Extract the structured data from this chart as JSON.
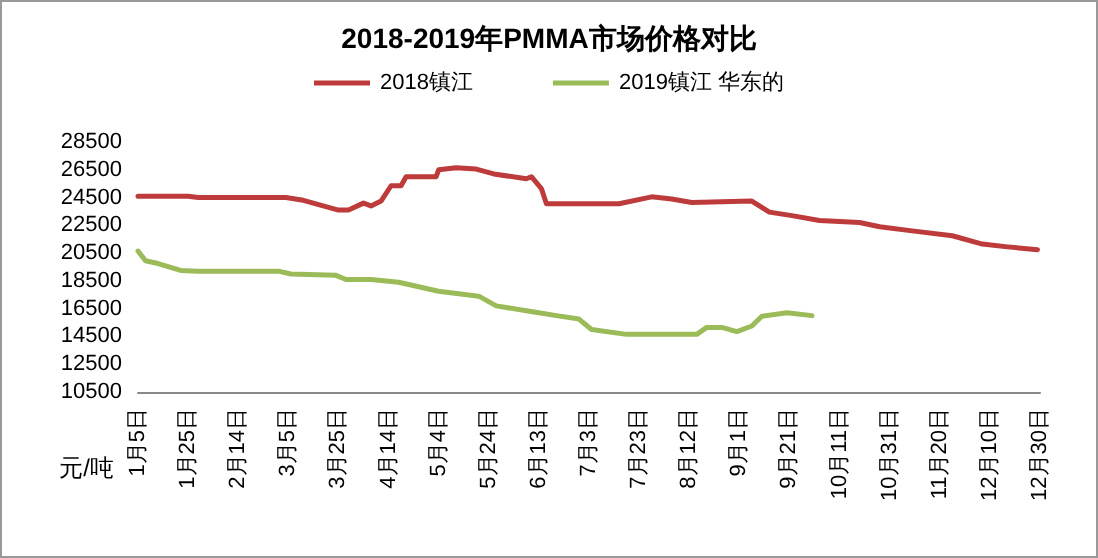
{
  "chart_data": {
    "type": "line",
    "title": "2018-2019年PMMA市场价格对比",
    "ylabel": "元/吨",
    "series": [
      {
        "name": "2018镇江",
        "color": "#be3b3b",
        "x": [
          "--01-05",
          "--01-25",
          "--01-29",
          "--03-04",
          "--03-11",
          "--03-25",
          "--03-29",
          "--04-04",
          "--04-07",
          "--04-11",
          "--04-15",
          "--04-19",
          "--04-21",
          "--05-03",
          "--05-04",
          "--05-11",
          "--05-19",
          "--05-26",
          "--06-08",
          "--06-10",
          "--06-14",
          "--06-16",
          "--07-15",
          "--07-28",
          "--08-05",
          "--08-13",
          "--09-06",
          "--09-13",
          "--09-22",
          "--10-03",
          "--10-19",
          "--10-27",
          "--11-09",
          "--11-25",
          "--12-07",
          "--12-17",
          "--12-29"
        ],
        "values": [
          24600,
          24600,
          24500,
          24500,
          24300,
          23600,
          23600,
          24100,
          23900,
          24250,
          25350,
          25350,
          26000,
          26000,
          26500,
          26650,
          26550,
          26200,
          25850,
          26000,
          25150,
          24050,
          24050,
          24550,
          24400,
          24150,
          24250,
          23450,
          23200,
          22850,
          22700,
          22400,
          22100,
          21750,
          21150,
          20950,
          20750
        ]
      },
      {
        "name": "2019镇江 华东的",
        "color": "#9bbb59",
        "x": [
          "--01-05",
          "--01-08",
          "--01-13",
          "--01-22",
          "--01-29",
          "--03-01",
          "--03-06",
          "--03-24",
          "--03-28",
          "--04-07",
          "--04-18",
          "--05-04",
          "--05-20",
          "--05-27",
          "--06-08",
          "--06-13",
          "--06-20",
          "--06-29",
          "--07-04",
          "--07-18",
          "--08-15",
          "--08-19",
          "--08-25",
          "--08-31",
          "--09-06",
          "--09-10",
          "--09-20",
          "--09-30"
        ],
        "values": [
          20650,
          19950,
          19750,
          19250,
          19200,
          19200,
          19000,
          18900,
          18600,
          18600,
          18400,
          17750,
          17400,
          16700,
          16350,
          16200,
          16000,
          15750,
          15000,
          14650,
          14650,
          15150,
          15150,
          14850,
          15250,
          15950,
          16200,
          16000
        ]
      }
    ],
    "xlim": [
      "--01-05",
      "--12-30"
    ],
    "xticks": [
      {
        "value": "--01-05",
        "label": "1月5日"
      },
      {
        "value": "--01-25",
        "label": "1月25日"
      },
      {
        "value": "--02-14",
        "label": "2月14日"
      },
      {
        "value": "--03-05",
        "label": "3月5日"
      },
      {
        "value": "--03-25",
        "label": "3月25日"
      },
      {
        "value": "--04-14",
        "label": "4月14日"
      },
      {
        "value": "--05-04",
        "label": "5月4日"
      },
      {
        "value": "--05-24",
        "label": "5月24日"
      },
      {
        "value": "--06-13",
        "label": "6月13日"
      },
      {
        "value": "--07-03",
        "label": "7月3日"
      },
      {
        "value": "--07-23",
        "label": "7月23日"
      },
      {
        "value": "--08-12",
        "label": "8月12日"
      },
      {
        "value": "--09-01",
        "label": "9月1日"
      },
      {
        "value": "--09-21",
        "label": "9月21日"
      },
      {
        "value": "--10-11",
        "label": "10月11日"
      },
      {
        "value": "--10-31",
        "label": "10月31日"
      },
      {
        "value": "--11-20",
        "label": "11月20日"
      },
      {
        "value": "--12-10",
        "label": "12月10日"
      },
      {
        "value": "--12-30",
        "label": "12月30日"
      }
    ],
    "ylim": [
      10500,
      28500
    ],
    "yticks": [
      10500,
      12500,
      14500,
      16500,
      18500,
      20500,
      22500,
      24500,
      26500,
      28500
    ],
    "grid": false,
    "legend": "top",
    "marker": "none",
    "line_style": "solid"
  }
}
